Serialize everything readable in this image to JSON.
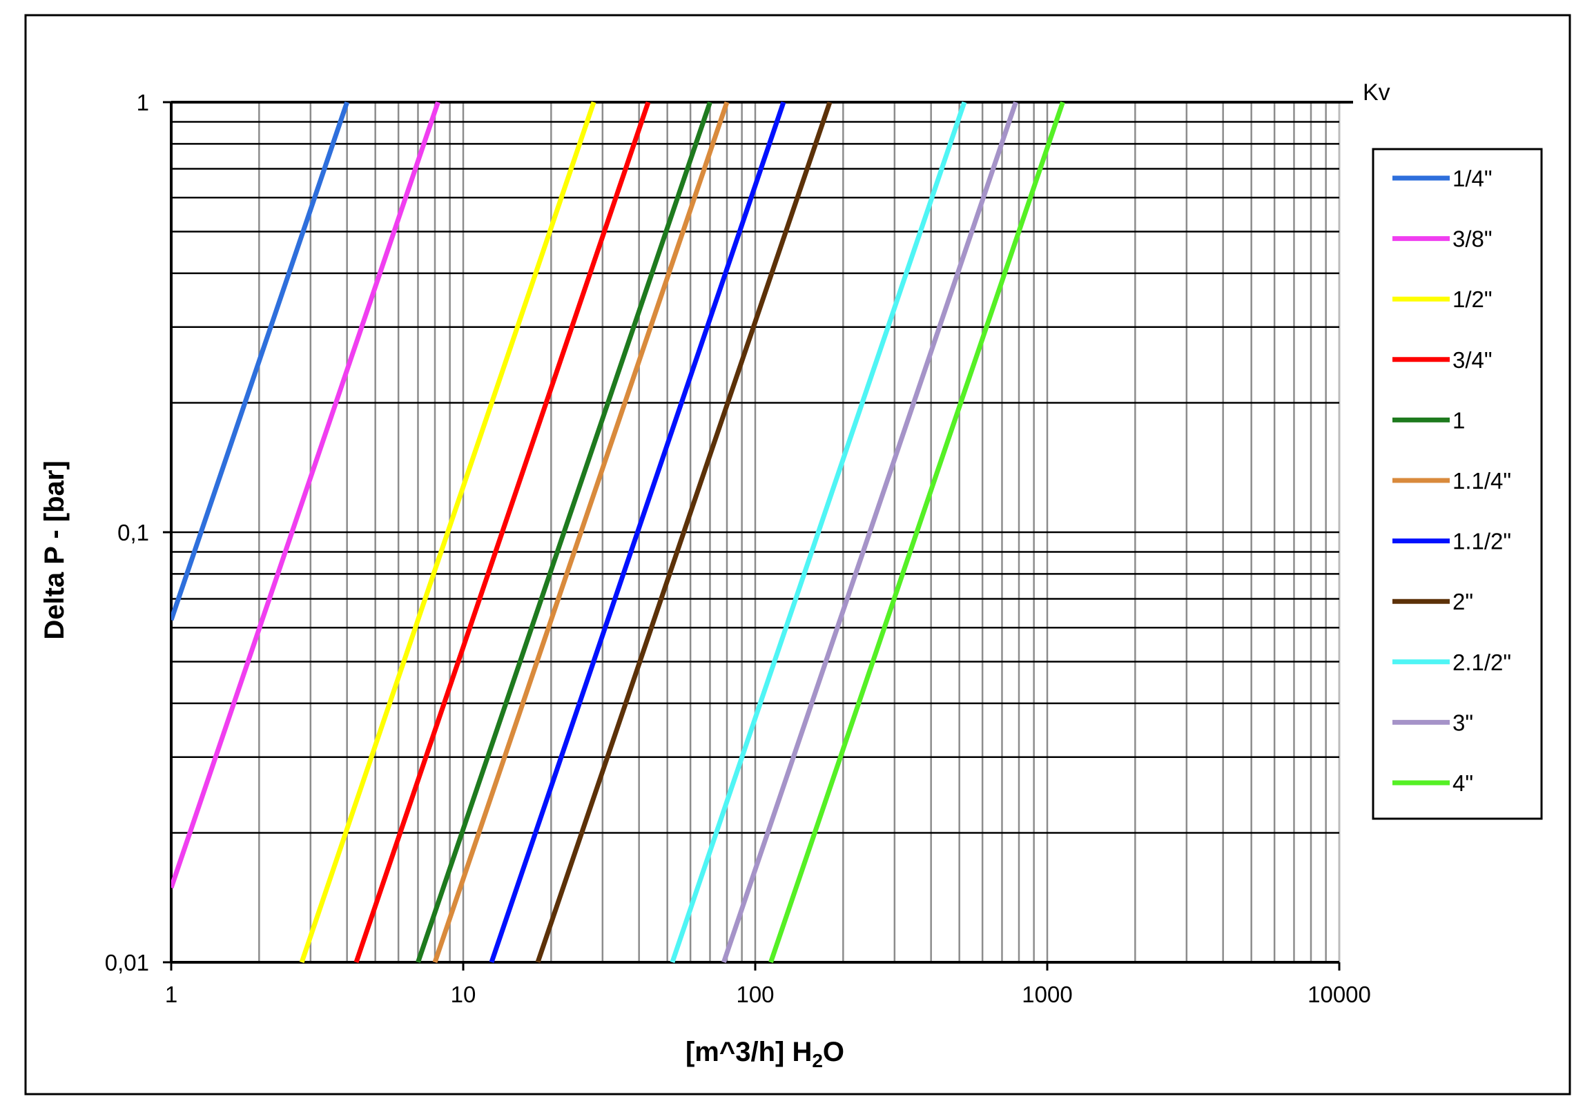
{
  "chart_data": {
    "type": "line",
    "xscale": "log",
    "yscale": "log",
    "xlim": [
      1,
      10000
    ],
    "ylim": [
      0.01,
      1
    ],
    "xticks": [
      "1",
      "10",
      "100",
      "1000",
      "10000"
    ],
    "yticks": [
      "1",
      "0,1",
      "0,01"
    ],
    "xlabel_main": "[m^3/h] H",
    "xlabel_sub": "2",
    "xlabel_tail": "O",
    "ylabel": "Delta P - [bar]",
    "corner_label": "Kv",
    "grid": true,
    "legend_position": "right",
    "series": [
      {
        "name": "1/4\"",
        "color": "#2e6fdc",
        "x": [
          1.0,
          4.0
        ],
        "y": [
          0.0625,
          1
        ]
      },
      {
        "name": "3/8\"",
        "color": "#f03ef0",
        "x": [
          1.0,
          8.2
        ],
        "y": [
          0.0149,
          1
        ]
      },
      {
        "name": "1/2\"",
        "color": "#ffff00",
        "x": [
          2.8,
          28
        ],
        "y": [
          0.01,
          1
        ]
      },
      {
        "name": "3/4\"",
        "color": "#ff0000",
        "x": [
          4.3,
          43
        ],
        "y": [
          0.01,
          1
        ]
      },
      {
        "name": "1",
        "color": "#1e7a1e",
        "x": [
          7.0,
          70
        ],
        "y": [
          0.01,
          1
        ]
      },
      {
        "name": "1.1/4\"",
        "color": "#d98a3c",
        "x": [
          8.0,
          80
        ],
        "y": [
          0.01,
          1
        ]
      },
      {
        "name": "1.1/2\"",
        "color": "#0010ff",
        "x": [
          12.5,
          125
        ],
        "y": [
          0.01,
          1
        ]
      },
      {
        "name": "2\"",
        "color": "#5c3108",
        "x": [
          18,
          180
        ],
        "y": [
          0.01,
          1
        ]
      },
      {
        "name": "2.1/2\"",
        "color": "#4ff5f5",
        "x": [
          52,
          520
        ],
        "y": [
          0.01,
          1
        ]
      },
      {
        "name": "3\"",
        "color": "#a593c8",
        "x": [
          78,
          780
        ],
        "y": [
          0.01,
          1
        ]
      },
      {
        "name": "4\"",
        "color": "#55f025",
        "x": [
          113,
          1130
        ],
        "y": [
          0.01,
          1
        ]
      }
    ]
  }
}
